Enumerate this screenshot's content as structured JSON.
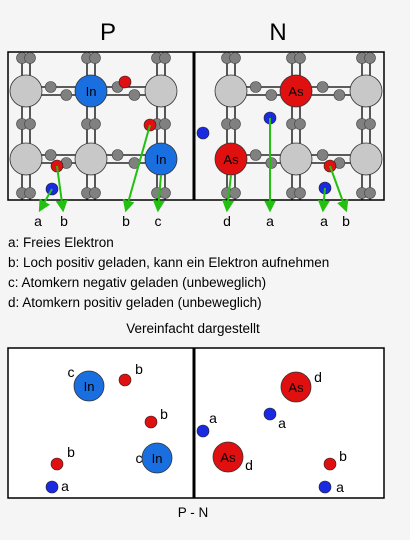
{
  "header": {
    "p_label": "P",
    "n_label": "N"
  },
  "atoms": {
    "in_label": "In",
    "as_label": "As"
  },
  "legend": [
    {
      "key": "a",
      "text": "a: Freies Elektron"
    },
    {
      "key": "b",
      "text": "b: Loch positiv geladen, kann ein Elektron aufnehmen"
    },
    {
      "key": "c",
      "text": "c: Atomkern negativ geladen (unbeweglich)"
    },
    {
      "key": "d",
      "text": "d: Atomkern positiv geladen (unbeweglich)"
    }
  ],
  "simplified_title": "Vereinfacht dargestellt",
  "junction_label": "P - N",
  "colors": {
    "background": "#f5f5f5",
    "frame": "#000000",
    "bond": "#000000",
    "lattice_atom": "#c8c8c8",
    "valence_electron": "#808080",
    "in_atom": "#1a6fe0",
    "as_atom": "#e01010",
    "hole": "#e01010",
    "free_electron": "#1a2ae0",
    "arrow": "#22c010"
  }
}
